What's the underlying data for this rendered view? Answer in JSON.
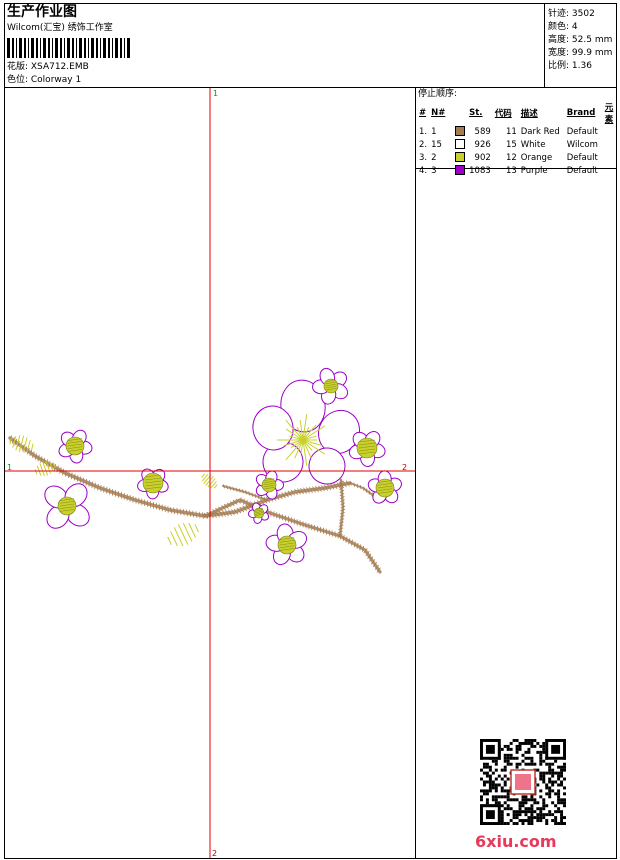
{
  "header": {
    "title": "生产作业图",
    "company": "Wilcom(汇宝) 绣饰工作室",
    "pattern": "花版: XSA712.EMB",
    "colorway": "色位: Colorway 1"
  },
  "stats": [
    {
      "label": "针迹:",
      "value": "3502"
    },
    {
      "label": "颜色:",
      "value": "4"
    },
    {
      "label": "高度:",
      "value": "52.5 mm"
    },
    {
      "label": "宽度:",
      "value": "99.9 mm"
    },
    {
      "label": "比例:",
      "value": "1.36"
    }
  ],
  "canvas": {
    "marker_top": "1",
    "marker_bottom": "2",
    "marker_left": "1",
    "marker_right": "2"
  },
  "legend": {
    "title": "停止顺序:",
    "headers": [
      "#",
      "N#",
      "St.",
      "代码",
      "描述",
      "Brand",
      "元素"
    ],
    "rows": [
      {
        "index": "1.",
        "n": "1",
        "color": "#a57c52",
        "st": "589",
        "code": "11",
        "desc": "Dark Red",
        "brand": "Default",
        "element": ""
      },
      {
        "index": "2.",
        "n": "15",
        "color": "#ffffff",
        "st": "926",
        "code": "15",
        "desc": "White",
        "brand": "Wilcom",
        "element": ""
      },
      {
        "index": "3.",
        "n": "2",
        "color": "#c8d02a",
        "st": "902",
        "code": "12",
        "desc": "Orange",
        "brand": "Default",
        "element": ""
      },
      {
        "index": "4.",
        "n": "3",
        "color": "#9b00c8",
        "st": "1083",
        "code": "13",
        "desc": "Purple",
        "brand": "Default",
        "element": ""
      }
    ]
  },
  "colors": {
    "branch": "#a57c52",
    "leaf": "#c8d02a",
    "petal": "#9b00c8",
    "guide": "#e00000",
    "marker": "#00a000"
  },
  "watermark": {
    "site": "6xiu.com",
    "qr_icon": "qr-code-icon"
  }
}
